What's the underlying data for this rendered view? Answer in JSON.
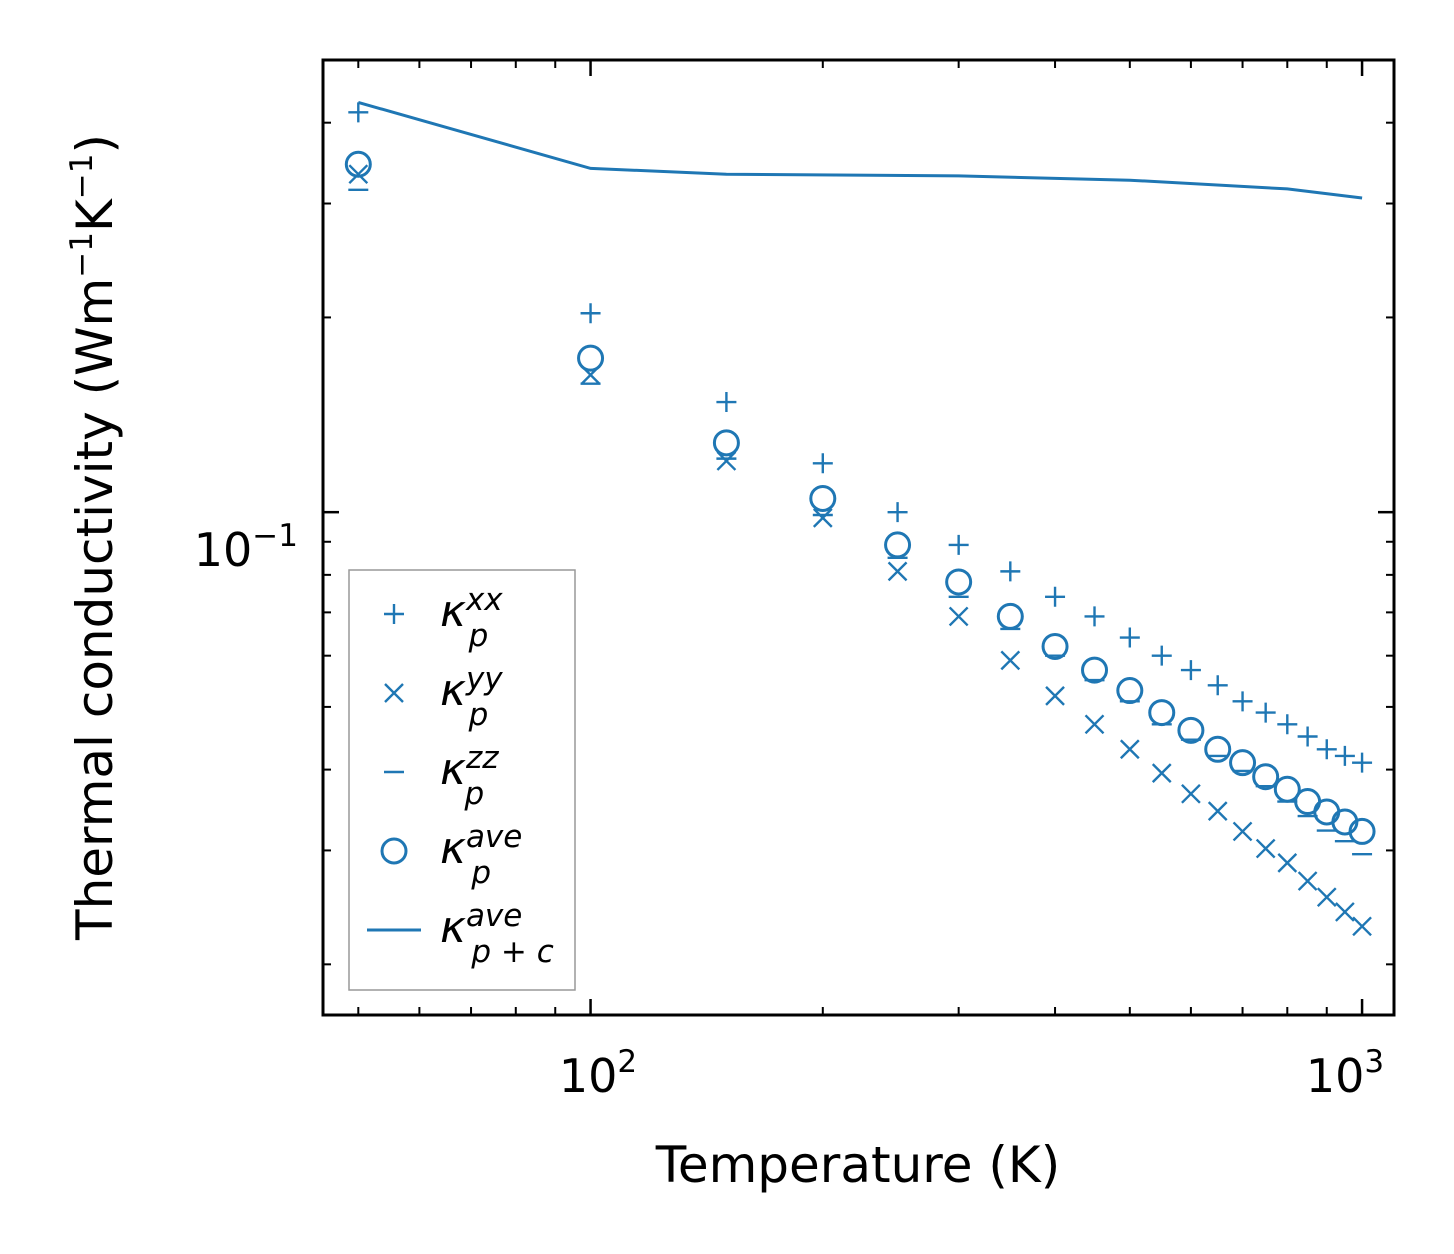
{
  "chart_data": {
    "type": "scatter",
    "title": "",
    "xlabel": "Temperature (K)",
    "ylabel_parts": {
      "base": "Thermal conductivity (Wm",
      "e1": "−1",
      "mid": "K",
      "e2": "−1",
      "end": ")"
    },
    "xscale": "log",
    "yscale": "log",
    "xlim": [
      45,
      1100
    ],
    "ylim": [
      0.0167,
      0.5
    ],
    "x_ticks": [
      {
        "value": 100,
        "base": "10",
        "exp": "2"
      },
      {
        "value": 1000,
        "base": "10",
        "exp": "3"
      }
    ],
    "y_ticks": [
      {
        "value": 0.1,
        "base": "10",
        "exp": "−1"
      }
    ],
    "x": [
      50,
      100,
      150,
      200,
      250,
      300,
      350,
      400,
      450,
      500,
      550,
      600,
      650,
      700,
      750,
      800,
      850,
      900,
      950,
      1000
    ],
    "series": [
      {
        "name": "kappa_p_xx",
        "marker": "plus",
        "legend": {
          "symbol": "κ",
          "sub": "p",
          "sup": "xx"
        },
        "values": [
          0.415,
          0.203,
          0.148,
          0.119,
          0.1,
          0.089,
          0.081,
          0.074,
          0.069,
          0.064,
          0.06,
          0.057,
          0.054,
          0.051,
          0.049,
          0.047,
          0.045,
          0.043,
          0.042,
          0.041
        ]
      },
      {
        "name": "kappa_p_yy",
        "marker": "x",
        "legend": {
          "symbol": "κ",
          "sub": "p",
          "sup": "yy"
        },
        "values": [
          0.333,
          0.163,
          0.12,
          0.098,
          0.081,
          0.069,
          0.059,
          0.052,
          0.047,
          0.043,
          0.0395,
          0.0367,
          0.0345,
          0.0321,
          0.0302,
          0.0287,
          0.0269,
          0.0254,
          0.0241,
          0.0229
        ]
      },
      {
        "name": "kappa_p_zz",
        "marker": "hline",
        "legend": {
          "symbol": "κ",
          "sub": "p",
          "sup": "zz"
        },
        "values": [
          0.315,
          0.158,
          0.121,
          0.099,
          0.085,
          0.074,
          0.066,
          0.06,
          0.055,
          0.051,
          0.047,
          0.0445,
          0.042,
          0.0398,
          0.0377,
          0.0357,
          0.0339,
          0.0322,
          0.031,
          0.0296
        ]
      },
      {
        "name": "kappa_p_ave",
        "marker": "circle",
        "legend": {
          "symbol": "κ",
          "sub": "p",
          "sup": "ave"
        },
        "values": [
          0.345,
          0.173,
          0.128,
          0.105,
          0.089,
          0.078,
          0.069,
          0.062,
          0.057,
          0.053,
          0.049,
          0.046,
          0.043,
          0.041,
          0.039,
          0.0373,
          0.0357,
          0.0344,
          0.0332,
          0.0321
        ]
      },
      {
        "name": "kappa_p_c_ave",
        "marker": "line",
        "legend": {
          "symbol": "κ",
          "sub": "p + c",
          "sup": "ave"
        },
        "x": [
          50,
          100,
          150,
          300,
          500,
          800,
          1000
        ],
        "values": [
          0.43,
          0.34,
          0.333,
          0.331,
          0.326,
          0.316,
          0.306
        ]
      }
    ],
    "legend_position": "lower-left",
    "color": "#1f77b4",
    "grid": false
  }
}
